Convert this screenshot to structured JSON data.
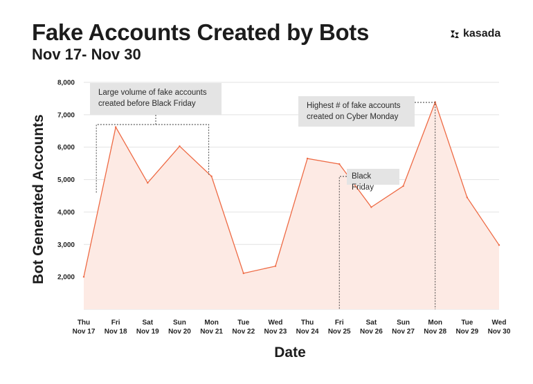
{
  "header": {
    "title": "Fake Accounts Created by Bots",
    "subtitle": "Nov 17- Nov 30",
    "logo_text": "kasada"
  },
  "annotations": {
    "bracket": "Large volume of fake accounts created before Black Friday",
    "peak": "Highest # of fake accounts created on Cyber Monday",
    "black_friday": "Black Friday"
  },
  "colors": {
    "line": "#ee6a44",
    "fill": "#fdeae4",
    "grid": "#e2e2e2"
  },
  "chart_data": {
    "type": "area",
    "title": "Fake Accounts Created by Bots",
    "subtitle": "Nov 17- Nov 30",
    "xlabel": "Date",
    "ylabel": "Bot Generated Accounts",
    "ylim": [
      1000,
      8000
    ],
    "yticks": [
      2000,
      3000,
      4000,
      5000,
      6000,
      7000,
      8000
    ],
    "ytick_labels": [
      "2,000",
      "3,000",
      "4,000",
      "5,000",
      "6,000",
      "7,000",
      "8,000"
    ],
    "grid": true,
    "categories": [
      {
        "day": "Thu",
        "date": "Nov 17"
      },
      {
        "day": "Fri",
        "date": "Nov 18"
      },
      {
        "day": "Sat",
        "date": "Nov 19"
      },
      {
        "day": "Sun",
        "date": "Nov 20"
      },
      {
        "day": "Mon",
        "date": "Nov 21"
      },
      {
        "day": "Tue",
        "date": "Nov 22"
      },
      {
        "day": "Wed",
        "date": "Nov 23"
      },
      {
        "day": "Thu",
        "date": "Nov 24"
      },
      {
        "day": "Fri",
        "date": "Nov 25"
      },
      {
        "day": "Sat",
        "date": "Nov 26"
      },
      {
        "day": "Sun",
        "date": "Nov 27"
      },
      {
        "day": "Mon",
        "date": "Nov 28"
      },
      {
        "day": "Tue",
        "date": "Nov 29"
      },
      {
        "day": "Wed",
        "date": "Nov 30"
      }
    ],
    "values": [
      2000,
      6620,
      4900,
      6030,
      5100,
      2110,
      2330,
      5650,
      5480,
      4150,
      4800,
      7390,
      4450,
      2980
    ]
  }
}
